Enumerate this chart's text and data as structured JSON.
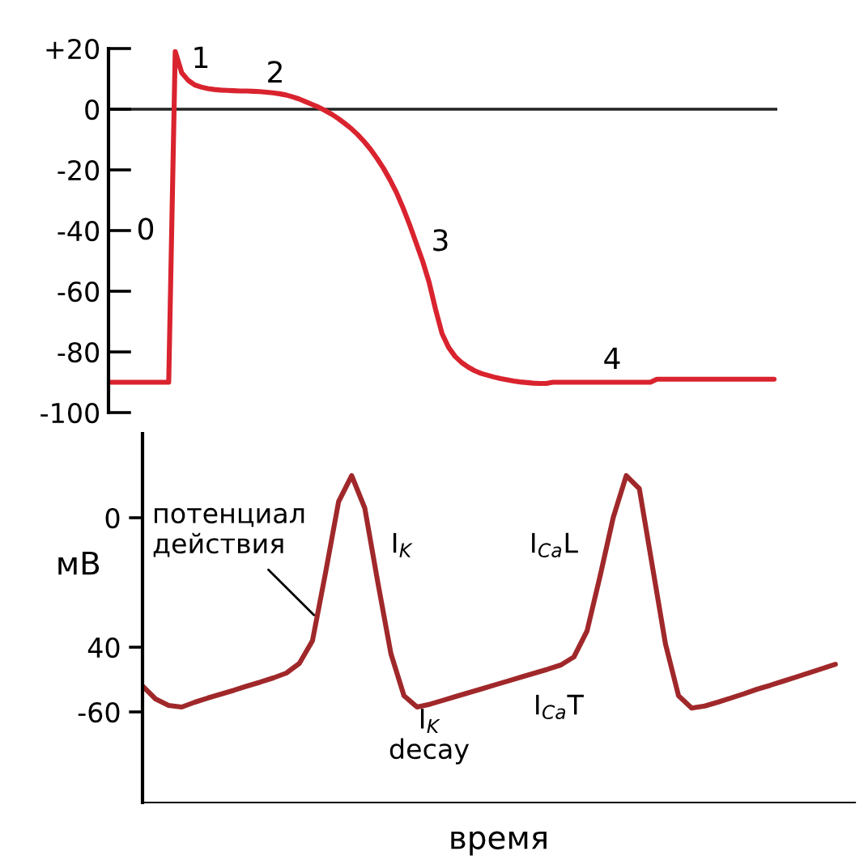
{
  "chart_data": [
    {
      "type": "line",
      "color": "#d9232e",
      "categories": [
        null,
        null,
        null,
        null,
        null,
        null,
        null,
        null,
        null,
        null,
        null,
        null,
        null,
        null,
        null,
        null,
        null,
        null,
        null,
        null,
        null,
        null,
        null,
        null,
        null,
        null,
        null,
        null,
        null,
        null,
        null,
        null,
        null,
        null,
        null,
        null,
        null,
        null,
        null,
        null,
        null,
        null,
        null,
        null,
        null,
        null,
        null,
        null,
        null,
        null,
        null,
        null,
        null,
        null,
        null,
        null,
        null,
        null,
        null,
        null,
        null,
        null,
        null,
        null,
        null,
        null,
        null,
        null,
        null,
        null,
        null,
        null,
        null,
        null,
        null,
        null,
        null,
        null,
        null,
        null,
        null,
        null,
        null,
        null,
        null,
        null,
        null,
        null,
        null,
        null,
        null,
        null,
        null,
        null,
        null,
        null,
        null,
        null,
        null,
        null,
        null,
        null,
        null
      ],
      "values": [
        -90,
        -90,
        -90,
        -90,
        -90,
        -90,
        -90,
        -90,
        -90,
        -90,
        19,
        12,
        9.5,
        8,
        7.3,
        6.8,
        6.5,
        6.3,
        6.2,
        6.1,
        6,
        6,
        5.9,
        5.8,
        5.6,
        5.4,
        5.1,
        4.7,
        4.1,
        3.4,
        2.5,
        1.6,
        0.7,
        -0.4,
        -1.6,
        -3,
        -4.6,
        -6.3,
        -8.3,
        -10.6,
        -13.2,
        -16.2,
        -19.5,
        -23.3,
        -27.5,
        -32.5,
        -38,
        -44,
        -50,
        -57,
        -66,
        -74,
        -78.5,
        -81.5,
        -83.5,
        -85,
        -86.2,
        -87.1,
        -87.7,
        -88.3,
        -88.8,
        -89.2,
        -89.6,
        -89.9,
        -90.1,
        -90.3,
        -90.4,
        -90.4,
        -90,
        -90,
        -90,
        -90,
        -90,
        -90,
        -90,
        -90,
        -90,
        -90,
        -90,
        -90,
        -90,
        -90,
        -90,
        -90,
        -89,
        -89,
        -89,
        -89,
        -89,
        -89,
        -89,
        -89,
        -89,
        -89,
        -89,
        -89,
        -89,
        -89,
        -89,
        -89,
        -89,
        -89,
        -89
      ],
      "ylim": [
        -100,
        20
      ],
      "yticks": [
        {
          "value": 20,
          "label": "+20"
        },
        0,
        -20,
        -40,
        -60,
        -80,
        -100
      ],
      "ref_lines": [
        {
          "axis": "y",
          "value": 0,
          "color": "#222222"
        }
      ],
      "annotations": [
        "0",
        "1",
        "2",
        "3",
        "4"
      ],
      "tick_labels": "y"
    },
    {
      "type": "line",
      "color": "#a0282a",
      "categories": [
        null,
        null,
        null,
        null,
        null,
        null,
        null,
        null,
        null,
        null,
        null,
        null,
        null,
        null,
        null,
        null,
        null,
        null,
        null,
        null,
        null,
        null,
        null,
        null,
        null,
        null,
        null,
        null,
        null,
        null,
        null,
        null,
        null,
        null,
        null,
        null,
        null,
        null,
        null,
        null,
        null,
        null,
        null,
        null,
        null,
        null,
        null,
        null,
        null,
        null,
        null,
        null,
        null,
        null
      ],
      "values": [
        -52,
        -56,
        -58,
        -58.5,
        -57,
        -55.7,
        -54.5,
        -53.3,
        -52,
        -50.8,
        -49.5,
        -48,
        -45,
        -38,
        -17,
        5,
        13,
        3,
        -20,
        -42,
        -55,
        -58.5,
        -57.6,
        -56.4,
        -55.2,
        -54,
        -52.8,
        -51.6,
        -50.4,
        -49.2,
        -48,
        -46.8,
        -45.5,
        -43,
        -35,
        -18,
        0,
        13,
        9,
        -15,
        -39,
        -55,
        -58.8,
        -58.2,
        -57,
        -55.7,
        -54.4,
        -53,
        -51.8,
        -50.5,
        -49.2,
        -47.9,
        -46.6,
        -45.3
      ],
      "ylim": [
        -88,
        26
      ],
      "yticks": [
        0,
        {
          "value": -40,
          "label": "40"
        },
        -60
      ],
      "xlabel": "время",
      "ylabel": "мВ",
      "annotations": [
        "потенциал\nдействия",
        "I$_{K}$",
        "I$_{Ca}$L",
        "I$_{K}$\ndecay",
        "I$_{Ca}$T"
      ],
      "tick_labels": "y"
    }
  ]
}
